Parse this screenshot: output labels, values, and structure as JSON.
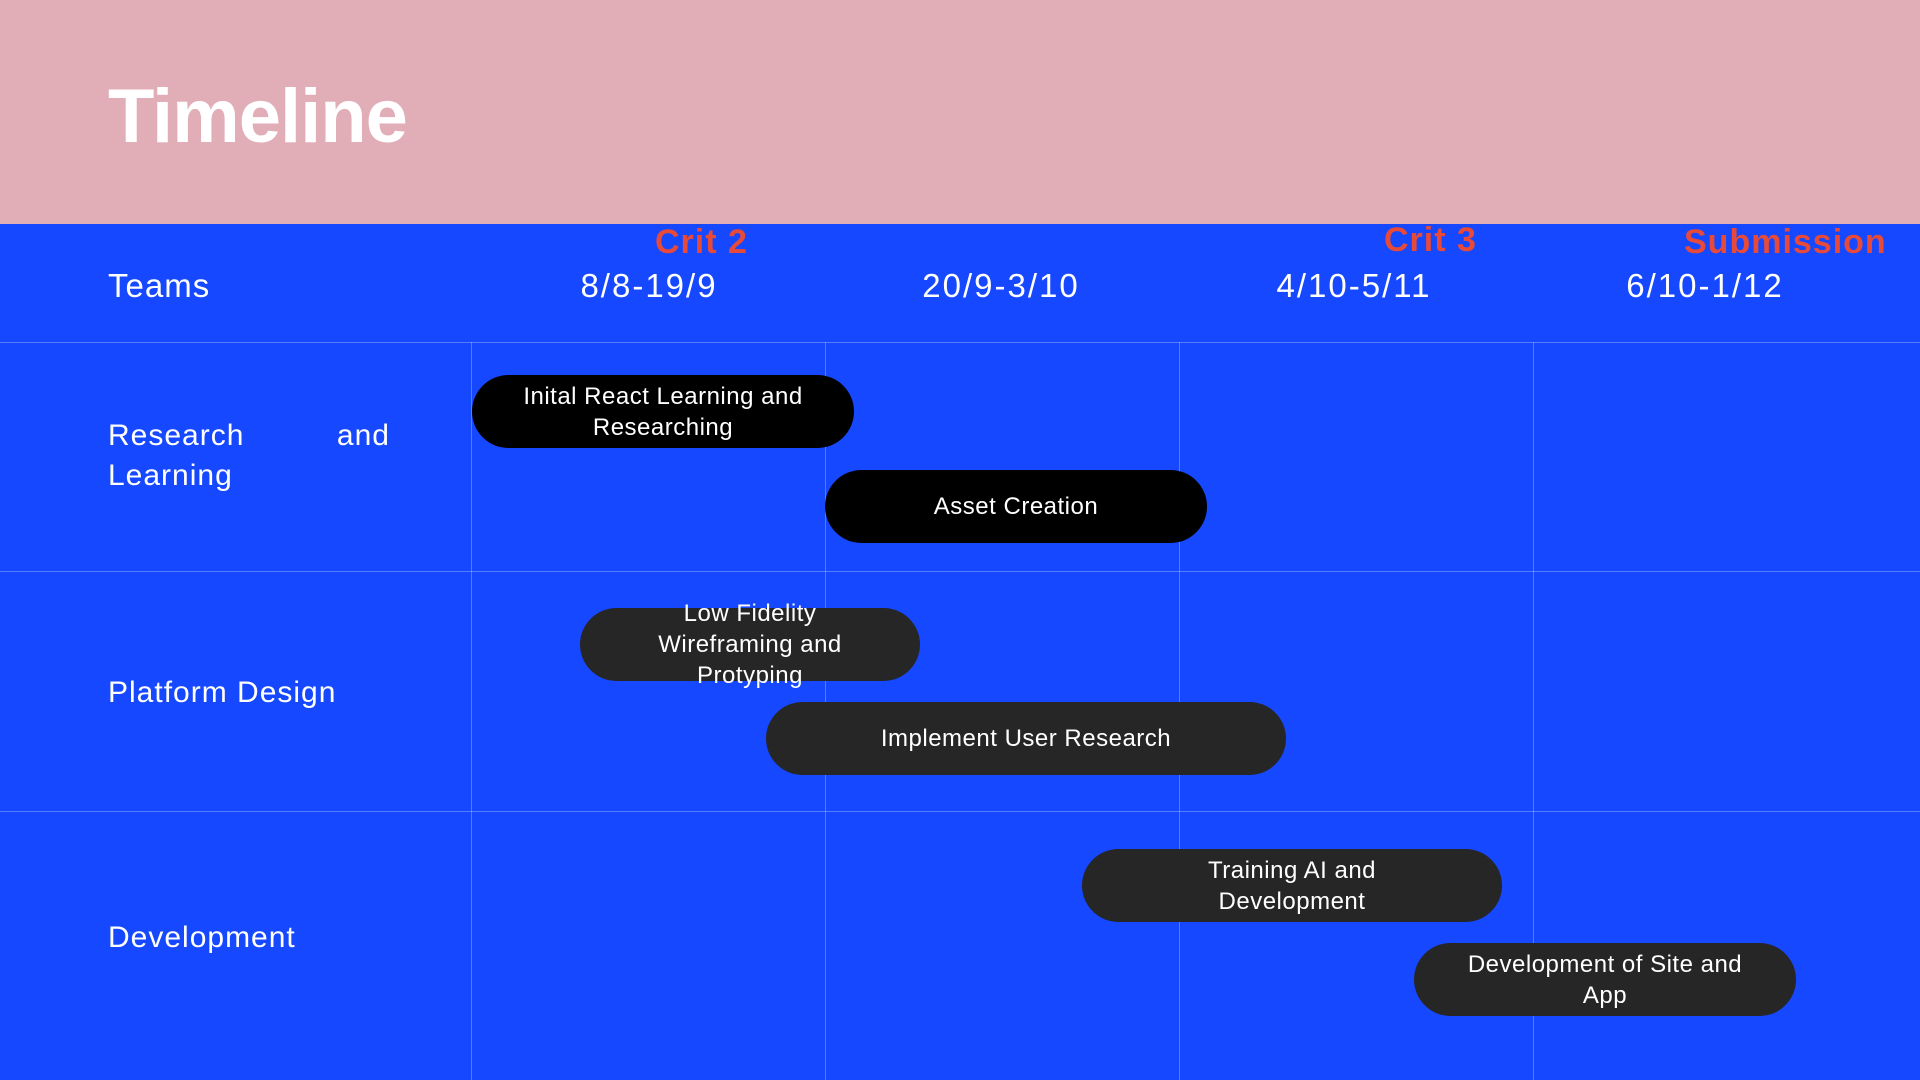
{
  "header": {
    "title": "Timeline"
  },
  "table": {
    "teams_label": "Teams",
    "columns": [
      "8/8-19/9",
      "20/9-3/10",
      "4/10-5/11",
      "6/10-1/12"
    ],
    "milestones": [
      "Crit 2",
      "Crit 3",
      "Submission"
    ],
    "rows": [
      {
        "label": "Research and Learning"
      },
      {
        "label": "Platform Design"
      },
      {
        "label": "Development"
      }
    ]
  },
  "tasks": [
    {
      "label": "Inital React Learning and Researching",
      "row": "Research and Learning",
      "start": "8/8",
      "end": "20/9",
      "color": "#000000"
    },
    {
      "label": "Asset Creation",
      "row": "Research and Learning",
      "start": "20/9",
      "end": "4/10",
      "color": "#000000"
    },
    {
      "label": "Low Fidelity Wireframing and Protyping",
      "row": "Platform Design",
      "start": "8/8",
      "end": "20/9",
      "color": "#262626"
    },
    {
      "label": "Implement User Research",
      "row": "Platform Design",
      "start": "20/9",
      "end": "4/10",
      "color": "#262626"
    },
    {
      "label": "Training AI and Development",
      "row": "Development",
      "start": "4/10",
      "end": "6/10",
      "color": "#262626"
    },
    {
      "label": "Development of Site and App",
      "row": "Development",
      "start": "6/10",
      "end": "1/12",
      "color": "#262626"
    }
  ],
  "colors": {
    "header_bg": "#E1AEB8",
    "body_bg": "#1648FF",
    "milestone": "#E84A3A",
    "text": "#FFFFFF"
  }
}
